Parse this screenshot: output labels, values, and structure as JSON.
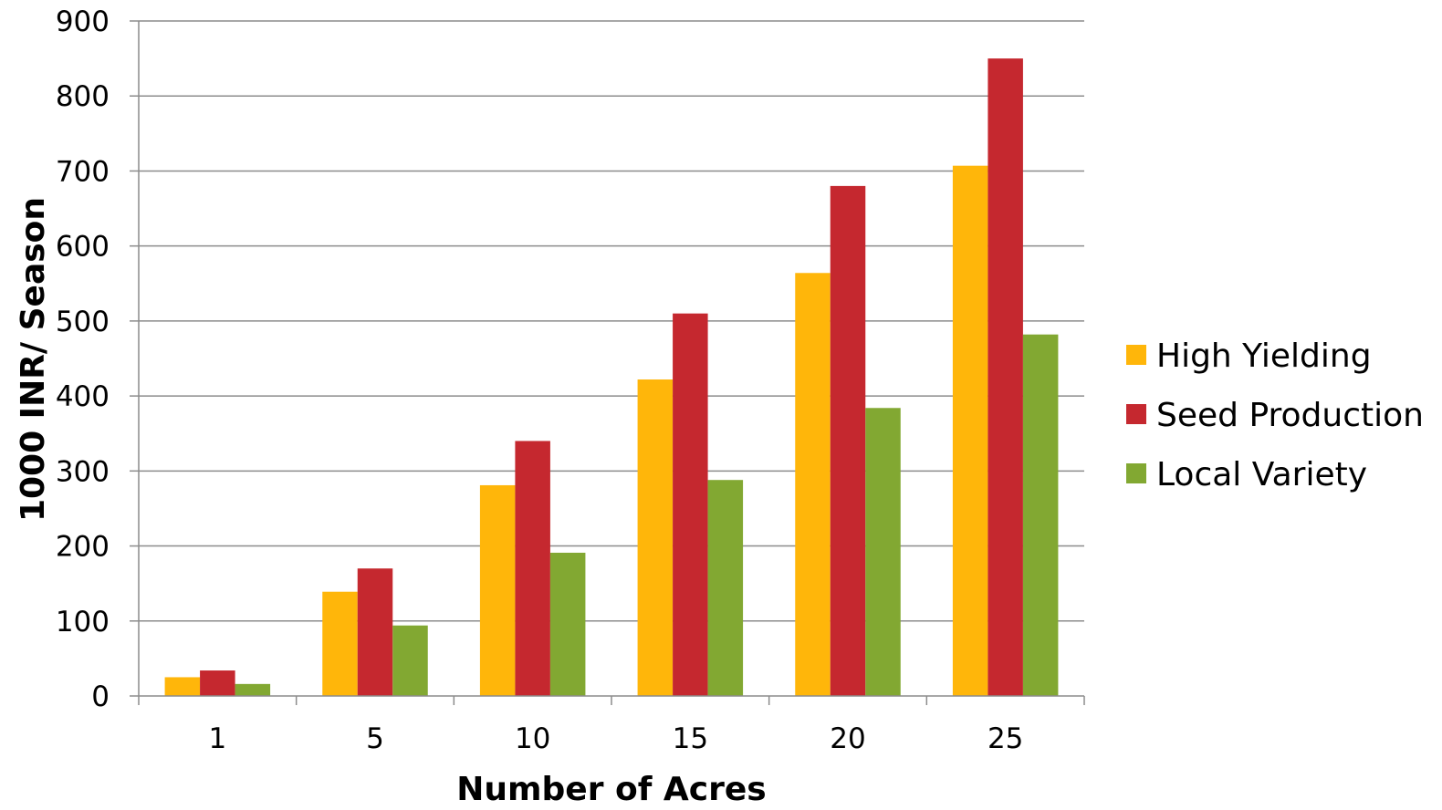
{
  "chart_data": {
    "type": "bar",
    "title": "",
    "xlabel": "Number of Acres",
    "ylabel": "1000 INR/ Season",
    "categories": [
      "1",
      "5",
      "10",
      "15",
      "20",
      "25"
    ],
    "series": [
      {
        "name": "High Yielding",
        "color": "#FFB60A",
        "values": [
          25,
          139,
          281,
          422,
          564,
          707
        ]
      },
      {
        "name": "Seed Production",
        "color": "#C5282F",
        "values": [
          34,
          170,
          340,
          510,
          680,
          850
        ]
      },
      {
        "name": "Local Variety",
        "color": "#82A832",
        "values": [
          16,
          94,
          191,
          288,
          384,
          482
        ]
      }
    ],
    "ylim": [
      0,
      900
    ],
    "yticks": [
      "0",
      "100",
      "200",
      "300",
      "400",
      "500",
      "600",
      "700",
      "800",
      "900"
    ],
    "grid": true,
    "legend_position": "right"
  }
}
